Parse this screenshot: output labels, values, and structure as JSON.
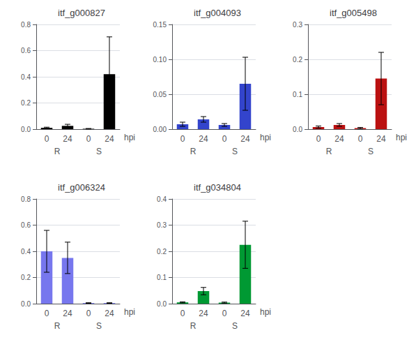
{
  "chart_data": [
    {
      "type": "bar",
      "title": "itf_g000827",
      "categories": [
        "0",
        "24",
        "0",
        "24"
      ],
      "values": [
        0.01,
        0.025,
        0.003,
        0.42
      ],
      "errors": [
        0.005,
        0.012,
        0.002,
        0.285
      ],
      "color": "#000000",
      "ylim": [
        0,
        0.8
      ],
      "yticks": [
        {
          "value": 0,
          "label": "0.0"
        },
        {
          "value": 0.2,
          "label": "0.2"
        },
        {
          "value": 0.4,
          "label": "0.4"
        },
        {
          "value": 0.6,
          "label": "0.6"
        },
        {
          "value": 0.8,
          "label": "0.8"
        }
      ],
      "grid": true,
      "xlabel": "hpi",
      "annotations": [
        "R",
        "S"
      ]
    },
    {
      "type": "bar",
      "title": "itf_g004093",
      "categories": [
        "0",
        "24",
        "0",
        "24"
      ],
      "values": [
        0.007,
        0.014,
        0.006,
        0.065
      ],
      "errors": [
        0.003,
        0.004,
        0.002,
        0.038
      ],
      "color": "#3344cc",
      "ylim": [
        0,
        0.15
      ],
      "yticks": [
        {
          "value": 0,
          "label": "0.00"
        },
        {
          "value": 0.05,
          "label": "0.05"
        },
        {
          "value": 0.1,
          "label": "0.10"
        },
        {
          "value": 0.15,
          "label": "0.15"
        }
      ],
      "grid": true,
      "xlabel": "hpi",
      "annotations": [
        "R",
        "S"
      ]
    },
    {
      "type": "bar",
      "title": "itf_g005498",
      "categories": [
        "0",
        "24",
        "0",
        "24"
      ],
      "values": [
        0.006,
        0.012,
        0.003,
        0.145
      ],
      "errors": [
        0.003,
        0.004,
        0.002,
        0.075
      ],
      "color": "#bb1111",
      "ylim": [
        0,
        0.3
      ],
      "yticks": [
        {
          "value": 0,
          "label": "0.0"
        },
        {
          "value": 0.1,
          "label": "0.1"
        },
        {
          "value": 0.2,
          "label": "0.2"
        },
        {
          "value": 0.3,
          "label": "0.3"
        }
      ],
      "grid": true,
      "xlabel": "hpi",
      "annotations": [
        "R",
        "S"
      ]
    },
    {
      "type": "bar",
      "title": "itf_g006324",
      "categories": [
        "0",
        "24",
        "0",
        "24"
      ],
      "values": [
        0.4,
        0.35,
        0.005,
        0.005
      ],
      "errors": [
        0.16,
        0.12,
        0.002,
        0.002
      ],
      "color": "#7777ee",
      "ylim": [
        0,
        0.8
      ],
      "yticks": [
        {
          "value": 0,
          "label": "0.0"
        },
        {
          "value": 0.2,
          "label": "0.2"
        },
        {
          "value": 0.4,
          "label": "0.4"
        },
        {
          "value": 0.6,
          "label": "0.6"
        },
        {
          "value": 0.8,
          "label": "0.8"
        }
      ],
      "grid": true,
      "xlabel": "hpi",
      "annotations": [
        "R",
        "S"
      ]
    },
    {
      "type": "bar",
      "title": "itf_g034804",
      "categories": [
        "0",
        "24",
        "0",
        "24"
      ],
      "values": [
        0.005,
        0.048,
        0.004,
        0.225
      ],
      "errors": [
        0.002,
        0.014,
        0.002,
        0.09
      ],
      "color": "#009933",
      "ylim": [
        0,
        0.4
      ],
      "yticks": [
        {
          "value": 0,
          "label": "0.0"
        },
        {
          "value": 0.1,
          "label": "0.1"
        },
        {
          "value": 0.2,
          "label": "0.2"
        },
        {
          "value": 0.3,
          "label": "0.3"
        },
        {
          "value": 0.4,
          "label": "0.4"
        }
      ],
      "grid": true,
      "xlabel": "hpi",
      "annotations": [
        "R",
        "S"
      ]
    }
  ]
}
